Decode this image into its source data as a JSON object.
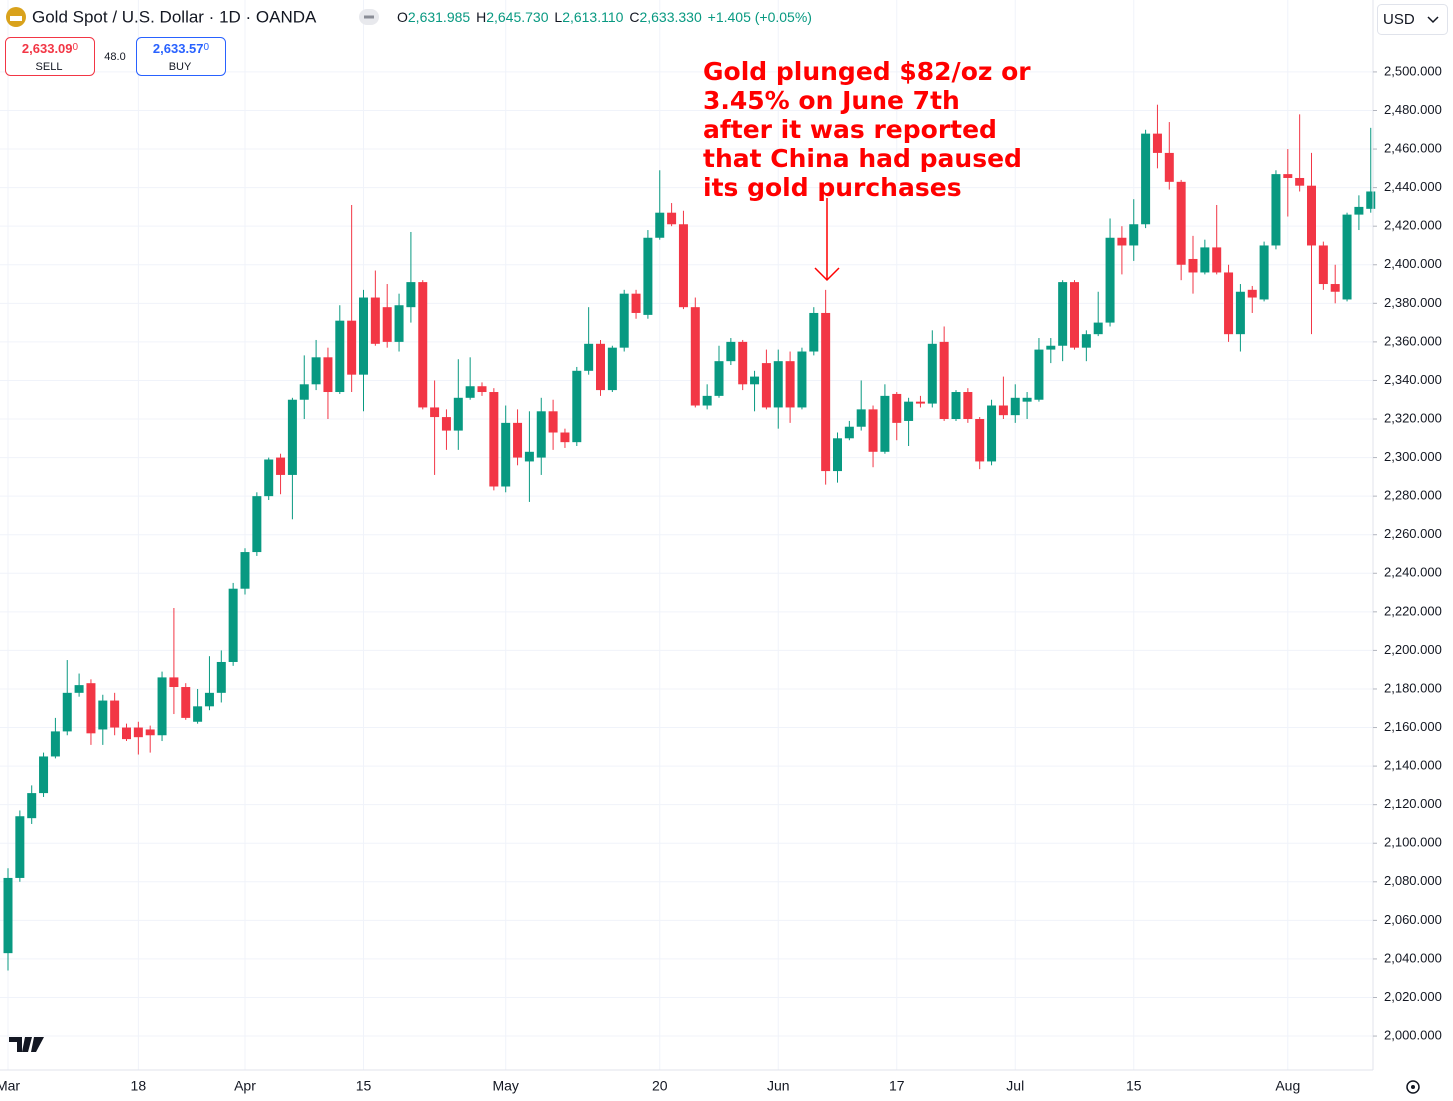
{
  "header": {
    "symbol": "Gold Spot / U.S. Dollar · 1D · OANDA",
    "ohlc": [
      {
        "label": "O",
        "value": "2,631.985"
      },
      {
        "label": "H",
        "value": "2,645.730"
      },
      {
        "label": "L",
        "value": "2,613.110"
      },
      {
        "label": "C",
        "value": "2,633.330"
      }
    ],
    "change": "+1.405 (+0.05%)"
  },
  "trade": {
    "sell_price": "2,633.09",
    "sell_digit": "0",
    "sell_label": "SELL",
    "spread": "48.0",
    "buy_price": "2,633.57",
    "buy_digit": "0",
    "buy_label": "BUY"
  },
  "currency": "USD",
  "chart_data": {
    "type": "candlestick",
    "annotation": [
      "Gold plunged $82/oz or",
      "3.45% on June 7th",
      "after it was reported",
      "that China had paused",
      "its gold purchases"
    ],
    "categories": [
      "Mar",
      null,
      null,
      null,
      null,
      null,
      null,
      null,
      null,
      null,
      null,
      "18",
      null,
      null,
      null,
      null,
      null,
      null,
      null,
      null,
      "Apr",
      null,
      null,
      null,
      null,
      null,
      null,
      null,
      null,
      null,
      "15",
      null,
      null,
      null,
      null,
      null,
      null,
      null,
      null,
      null,
      null,
      null,
      "May",
      null,
      null,
      null,
      null,
      null,
      null,
      null,
      null,
      null,
      null,
      null,
      null,
      "20",
      null,
      null,
      null,
      null,
      null,
      null,
      null,
      null,
      null,
      "Jun",
      null,
      null,
      null,
      null,
      null,
      null,
      null,
      null,
      null,
      "17",
      null,
      null,
      null,
      null,
      null,
      null,
      null,
      null,
      null,
      "Jul",
      null,
      null,
      null,
      null,
      null,
      null,
      null,
      null,
      null,
      "15",
      null,
      null,
      null,
      null,
      null,
      null,
      null,
      null,
      null,
      null,
      null,
      null,
      "Aug",
      null,
      null,
      null,
      null,
      null,
      null,
      null
    ],
    "open": [
      2043,
      2082,
      2113,
      2126,
      2145,
      2158,
      2178,
      2183,
      2159,
      2174,
      2160,
      2160,
      2159,
      2156,
      2186,
      2181,
      2163,
      2171,
      2178,
      2194,
      2232,
      2251,
      2280,
      2300,
      2291,
      2330,
      2338,
      2352,
      2334,
      2371,
      2343,
      2383,
      2378,
      2360,
      2378,
      2391,
      2326,
      2321,
      2314,
      2331,
      2337,
      2334,
      2285,
      2318,
      2298,
      2300,
      2324,
      2313,
      2308,
      2345,
      2359,
      2335,
      2357,
      2385,
      2374,
      2414,
      2427,
      2421,
      2378,
      2327,
      2332,
      2350,
      2360,
      2338,
      2349,
      2326,
      2350,
      2326,
      2355,
      2375,
      2293,
      2310,
      2316,
      2325,
      2303,
      2333,
      2319,
      2329,
      2328,
      2360,
      2320,
      2334,
      2320,
      2298,
      2327,
      2322,
      2329,
      2330,
      2356,
      2358,
      2391,
      2357,
      2364,
      2370,
      2414,
      2410,
      2421,
      2468,
      2458,
      2443,
      2403,
      2396,
      2409,
      2396,
      2364,
      2387,
      2382,
      2410,
      2447,
      2445,
      2441,
      2410,
      2390,
      2382,
      2426,
      2429
    ],
    "high": [
      2087,
      2117,
      2130,
      2147,
      2165,
      2195,
      2188,
      2185,
      2177,
      2178,
      2162,
      2163,
      2161,
      2189,
      2222,
      2183,
      2180,
      2197,
      2200,
      2235,
      2253,
      2282,
      2300,
      2302,
      2331,
      2353,
      2361,
      2357,
      2379,
      2431,
      2387,
      2397,
      2390,
      2385,
      2417,
      2392,
      2340,
      2325,
      2351,
      2352,
      2339,
      2336,
      2327,
      2325,
      2324,
      2331,
      2330,
      2315,
      2347,
      2378,
      2361,
      2358,
      2387,
      2387,
      2418,
      2449,
      2432,
      2428,
      2383,
      2338,
      2358,
      2362,
      2361,
      2345,
      2356,
      2356,
      2355,
      2357,
      2378,
      2387,
      2313,
      2319,
      2340,
      2327,
      2338,
      2334,
      2331,
      2332,
      2366,
      2368,
      2335,
      2336,
      2321,
      2330,
      2342,
      2338,
      2334,
      2362,
      2362,
      2392,
      2392,
      2366,
      2386,
      2424,
      2420,
      2434,
      2470,
      2483,
      2474,
      2444,
      2415,
      2413,
      2431,
      2400,
      2390,
      2389,
      2412,
      2449,
      2460,
      2478,
      2458,
      2412,
      2400,
      2427,
      2436,
      2471
    ],
    "low": [
      2034,
      2080,
      2110,
      2124,
      2144,
      2156,
      2176,
      2151,
      2151,
      2156,
      2153,
      2146,
      2147,
      2153,
      2167,
      2164,
      2162,
      2169,
      2173,
      2192,
      2229,
      2249,
      2278,
      2281,
      2268,
      2320,
      2335,
      2320,
      2333,
      2334,
      2324,
      2358,
      2357,
      2355,
      2370,
      2325,
      2291,
      2304,
      2304,
      2330,
      2332,
      2283,
      2282,
      2296,
      2277,
      2291,
      2304,
      2305,
      2306,
      2343,
      2332,
      2334,
      2355,
      2372,
      2372,
      2413,
      2420,
      2377,
      2326,
      2325,
      2331,
      2348,
      2335,
      2324,
      2325,
      2315,
      2318,
      2325,
      2353,
      2286,
      2287,
      2309,
      2314,
      2295,
      2302,
      2309,
      2306,
      2326,
      2326,
      2319,
      2319,
      2318,
      2294,
      2296,
      2320,
      2318,
      2320,
      2329,
      2349,
      2350,
      2356,
      2350,
      2363,
      2368,
      2395,
      2402,
      2419,
      2450,
      2439,
      2392,
      2385,
      2395,
      2395,
      2360,
      2355,
      2375,
      2381,
      2408,
      2425,
      2438,
      2364,
      2387,
      2380,
      2381,
      2418,
      2427
    ],
    "close": [
      2082,
      2114,
      2126,
      2145,
      2158,
      2178,
      2182,
      2157,
      2174,
      2160,
      2154,
      2155,
      2156,
      2186,
      2181,
      2165,
      2171,
      2178,
      2194,
      2232,
      2251,
      2280,
      2299,
      2291,
      2330,
      2338,
      2352,
      2334,
      2371,
      2343,
      2383,
      2359,
      2360,
      2379,
      2391,
      2326,
      2321,
      2314,
      2331,
      2337,
      2334,
      2285,
      2318,
      2300,
      2303,
      2324,
      2313,
      2308,
      2345,
      2359,
      2335,
      2357,
      2385,
      2375,
      2414,
      2427,
      2421,
      2378,
      2327,
      2332,
      2350,
      2360,
      2338,
      2342,
      2326,
      2350,
      2326,
      2355,
      2375,
      2293,
      2310,
      2316,
      2325,
      2303,
      2332,
      2318,
      2329,
      2328,
      2359,
      2320,
      2334,
      2320,
      2298,
      2327,
      2322,
      2331,
      2331,
      2356,
      2358,
      2391,
      2357,
      2364,
      2370,
      2414,
      2410,
      2421,
      2468,
      2458,
      2443,
      2400,
      2396,
      2409,
      2396,
      2364,
      2386,
      2383,
      2410,
      2447,
      2445,
      2441,
      2410,
      2390,
      2386,
      2426,
      2430,
      2438
    ],
    "up_color": "#089981",
    "down_color": "#f23645",
    "ylim": [
      1982.4,
      2537.3
    ],
    "yticks": [
      {
        "value": 2000,
        "label": "2,000.000"
      },
      {
        "value": 2020,
        "label": "2,020.000"
      },
      {
        "value": 2040,
        "label": "2,040.000"
      },
      {
        "value": 2060,
        "label": "2,060.000"
      },
      {
        "value": 2080,
        "label": "2,080.000"
      },
      {
        "value": 2100,
        "label": "2,100.000"
      },
      {
        "value": 2120,
        "label": "2,120.000"
      },
      {
        "value": 2140,
        "label": "2,140.000"
      },
      {
        "value": 2160,
        "label": "2,160.000"
      },
      {
        "value": 2180,
        "label": "2,180.000"
      },
      {
        "value": 2200,
        "label": "2,200.000"
      },
      {
        "value": 2220,
        "label": "2,220.000"
      },
      {
        "value": 2240,
        "label": "2,240.000"
      },
      {
        "value": 2260,
        "label": "2,260.000"
      },
      {
        "value": 2280,
        "label": "2,280.000"
      },
      {
        "value": 2300,
        "label": "2,300.000"
      },
      {
        "value": 2320,
        "label": "2,320.000"
      },
      {
        "value": 2340,
        "label": "2,340.000"
      },
      {
        "value": 2360,
        "label": "2,360.000"
      },
      {
        "value": 2380,
        "label": "2,380.000"
      },
      {
        "value": 2400,
        "label": "2,400.000"
      },
      {
        "value": 2420,
        "label": "2,420.000"
      },
      {
        "value": 2440,
        "label": "2,440.000"
      },
      {
        "value": 2460,
        "label": "2,460.000"
      },
      {
        "value": 2480,
        "label": "2,480.000"
      },
      {
        "value": 2500,
        "label": "2,500.000"
      }
    ],
    "grid": true
  }
}
